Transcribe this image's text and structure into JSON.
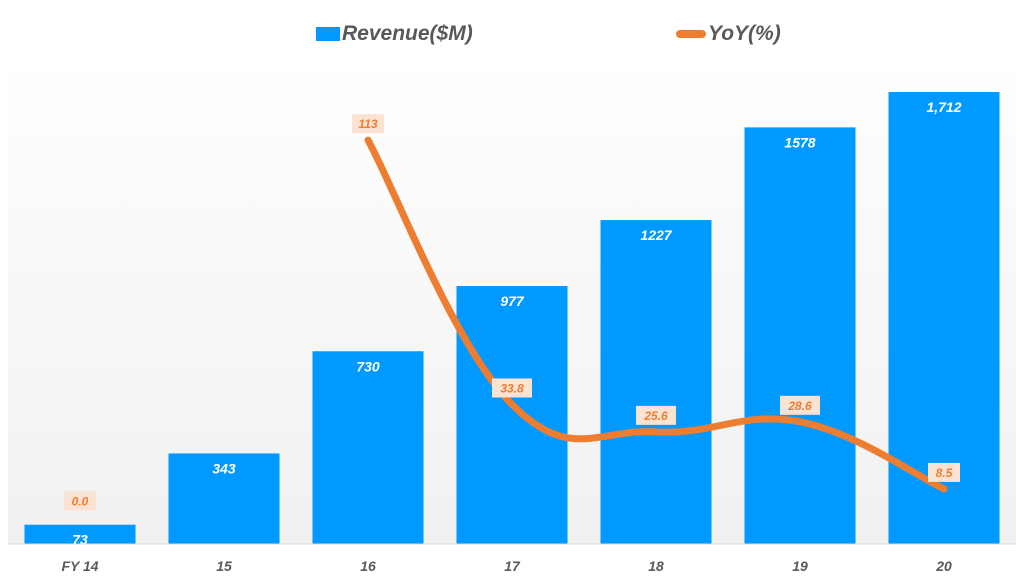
{
  "chart_data": {
    "type": "bar+line",
    "categories": [
      "FY 14",
      "15",
      "16",
      "17",
      "18",
      "19",
      "20"
    ],
    "series": [
      {
        "name": "Revenue($M)",
        "type": "bar",
        "axis": "primary",
        "values": [
          73,
          343,
          730,
          977,
          1227,
          1578,
          1712
        ],
        "labels": [
          "73",
          "343",
          "730",
          "977",
          "1227",
          "1578",
          "1,712"
        ]
      },
      {
        "name": "YoY(%)",
        "type": "line",
        "axis": "secondary",
        "values": [
          0.0,
          null,
          113,
          33.8,
          25.6,
          28.6,
          8.5
        ],
        "labels": [
          "0.0",
          null,
          "113",
          "33.8",
          "25.6",
          "28.6",
          "8.5"
        ]
      }
    ],
    "title": "",
    "xlabel": "",
    "ylabel": "",
    "ylim": [
      0,
      1712
    ],
    "y2lim": [
      -8,
      137
    ],
    "grid": false,
    "legend": "top-center",
    "colors": {
      "bar": "#0099ff",
      "line": "#ed7d31",
      "label_bg": "#fbe3d3",
      "axis_text": "#595959"
    }
  }
}
